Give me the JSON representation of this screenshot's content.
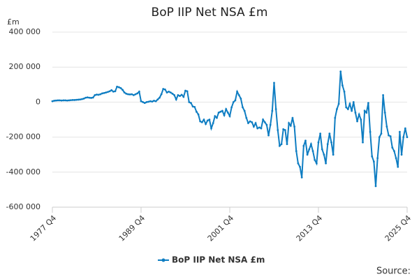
{
  "chart_data": {
    "type": "line",
    "title": "BoP IIP Net NSA £m",
    "y_label": "£m",
    "source": "Source:",
    "categories": [
      "1977 Q4",
      null,
      null,
      null,
      null,
      null,
      null,
      null,
      null,
      null,
      null,
      null,
      null,
      null,
      null,
      null,
      null,
      null,
      null,
      null,
      null,
      null,
      null,
      null,
      null,
      null,
      null,
      null,
      null,
      null,
      null,
      null,
      null,
      null,
      null,
      null,
      null,
      null,
      null,
      null,
      null,
      null,
      null,
      null,
      null,
      null,
      null,
      null,
      "1989 Q4",
      null,
      null,
      null,
      null,
      null,
      null,
      null,
      null,
      null,
      null,
      null,
      null,
      null,
      null,
      null,
      null,
      null,
      null,
      null,
      null,
      null,
      null,
      null,
      null,
      null,
      null,
      null,
      null,
      null,
      null,
      null,
      null,
      null,
      null,
      null,
      null,
      null,
      null,
      null,
      null,
      null,
      null,
      null,
      null,
      null,
      null,
      null,
      "2001 Q4",
      null,
      null,
      null,
      null,
      null,
      null,
      null,
      null,
      null,
      null,
      null,
      null,
      null,
      null,
      null,
      null,
      null,
      null,
      null,
      null,
      null,
      null,
      null,
      null,
      null,
      null,
      null,
      null,
      null,
      null,
      null,
      null,
      null,
      null,
      null,
      null,
      null,
      null,
      null,
      null,
      null,
      null,
      null,
      null,
      null,
      null,
      null,
      "2013 Q4",
      null,
      null,
      null,
      null,
      null,
      null,
      null,
      null,
      null,
      null,
      null,
      null,
      null,
      null,
      null,
      null,
      null,
      null,
      null,
      null,
      null,
      null,
      null,
      null,
      null,
      null,
      null,
      null,
      null,
      null,
      null,
      null,
      null,
      null,
      null,
      null,
      null,
      null,
      null,
      null,
      null,
      null,
      null,
      null,
      null,
      null,
      null,
      "2025 Q4"
    ],
    "series": [
      {
        "name": "BoP IIP Net NSA £m",
        "color": "#0e7dc2",
        "values": [
          5000,
          8000,
          9000,
          10000,
          10000,
          9000,
          10000,
          10000,
          9000,
          10000,
          11000,
          12000,
          12000,
          13000,
          14000,
          15000,
          17000,
          20000,
          25000,
          27000,
          25000,
          24000,
          26000,
          40000,
          43000,
          42000,
          45000,
          50000,
          52000,
          55000,
          58000,
          62000,
          68000,
          60000,
          62000,
          88000,
          85000,
          80000,
          70000,
          55000,
          48000,
          45000,
          44000,
          45000,
          40000,
          45000,
          50000,
          60000,
          5000,
          0,
          -5000,
          0,
          2000,
          5000,
          3000,
          8000,
          5000,
          15000,
          25000,
          45000,
          75000,
          72000,
          55000,
          60000,
          55000,
          48000,
          40000,
          15000,
          40000,
          35000,
          42000,
          30000,
          65000,
          62000,
          0,
          -5000,
          -25000,
          -28000,
          -55000,
          -70000,
          -110000,
          -115000,
          -100000,
          -125000,
          -105000,
          -100000,
          -150000,
          -120000,
          -80000,
          -90000,
          -60000,
          -55000,
          -50000,
          -75000,
          -40000,
          -60000,
          -80000,
          -30000,
          0,
          10000,
          60000,
          40000,
          20000,
          -30000,
          -50000,
          -90000,
          -120000,
          -110000,
          -115000,
          -140000,
          -120000,
          -150000,
          -145000,
          -150000,
          -100000,
          -115000,
          -130000,
          -190000,
          -130000,
          -50000,
          110000,
          -40000,
          -160000,
          -250000,
          -240000,
          -155000,
          -160000,
          -240000,
          -120000,
          -135000,
          -90000,
          -140000,
          -280000,
          -350000,
          -370000,
          -430000,
          -250000,
          -220000,
          -300000,
          -270000,
          -240000,
          -280000,
          -330000,
          -350000,
          -230000,
          -180000,
          -270000,
          -300000,
          -350000,
          -240000,
          -180000,
          -230000,
          -300000,
          -90000,
          -40000,
          -10000,
          175000,
          95000,
          60000,
          -30000,
          -40000,
          -10000,
          -50000,
          0,
          -60000,
          -110000,
          -70000,
          -100000,
          -230000,
          -50000,
          -60000,
          -5000,
          -170000,
          -310000,
          -340000,
          -480000,
          -320000,
          -200000,
          -180000,
          40000,
          -60000,
          -140000,
          -190000,
          -195000,
          -260000,
          -280000,
          -320000,
          -370000,
          -170000,
          -300000,
          -200000,
          -150000,
          -200000
        ]
      }
    ],
    "ylim": [
      -600000,
      400000
    ],
    "yticks": [
      {
        "value": -600000,
        "label": "-600 000"
      },
      {
        "value": -400000,
        "label": "-400 000"
      },
      {
        "value": -200000,
        "label": "-200 000"
      },
      0,
      {
        "value": 200000,
        "label": "200 000"
      },
      {
        "value": 400000,
        "label": "400 000"
      }
    ],
    "grid": true,
    "legend": "bottom"
  }
}
